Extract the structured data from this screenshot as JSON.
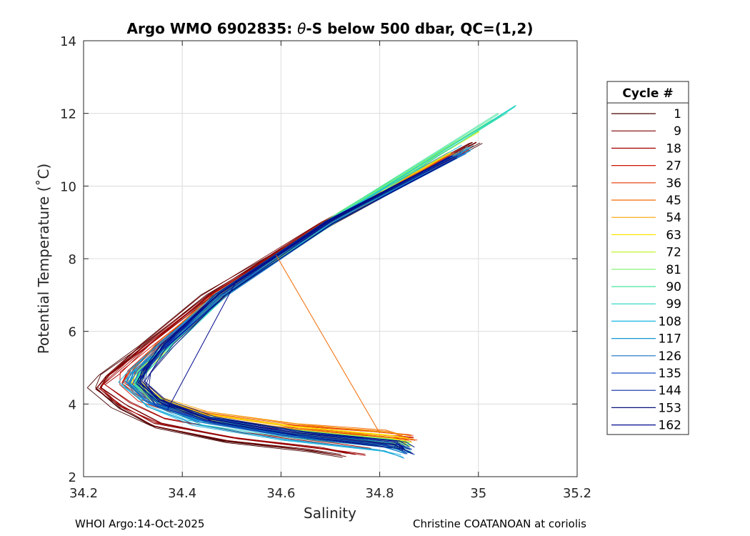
{
  "chart_data": {
    "type": "line",
    "title_parts": {
      "pre": "Argo WMO 6902835: ",
      "symbol": "θ",
      "post": "-S below 500 dbar,  QC=(1,2)"
    },
    "xlabel": "Salinity",
    "ylabel": "Potential Temperature (˚C)",
    "xlim": [
      34.2,
      35.2
    ],
    "ylim": [
      2,
      14
    ],
    "xticks": [
      34.2,
      34.4,
      34.6,
      34.8,
      35,
      35.2
    ],
    "xtick_labels": [
      "34.2",
      "34.4",
      "34.6",
      "34.8",
      "35",
      "35.2"
    ],
    "yticks": [
      2,
      4,
      6,
      8,
      10,
      12,
      14
    ],
    "ytick_labels": [
      "2",
      "4",
      "6",
      "8",
      "10",
      "12",
      "14"
    ],
    "grid": true,
    "legend": {
      "title": "Cycle #",
      "placement": "outside-right",
      "entries": [
        "1",
        "9",
        "18",
        "27",
        "36",
        "45",
        "54",
        "63",
        "72",
        "81",
        "90",
        "99",
        "108",
        "117",
        "126",
        "135",
        "144",
        "153",
        "162"
      ],
      "colors": [
        "#4a0000",
        "#7a0000",
        "#a30000",
        "#cc1100",
        "#e83500",
        "#f26a00",
        "#f7a300",
        "#ffe400",
        "#c5f52c",
        "#7ff06a",
        "#45e49e",
        "#22d3c4",
        "#18b6e0",
        "#1296d3",
        "#1670c4",
        "#1a4bc0",
        "#0d2aa0",
        "#06127a",
        "#000a8c"
      ]
    },
    "series": [
      {
        "name": "1",
        "x": [
          35.0,
          34.7,
          34.45,
          34.32,
          34.24,
          34.22,
          34.27,
          34.34,
          34.48,
          34.65,
          34.72
        ],
        "y": [
          11.2,
          9.0,
          7.0,
          5.6,
          4.8,
          4.45,
          3.9,
          3.4,
          3.0,
          2.75,
          2.6
        ]
      },
      {
        "name": "9",
        "x": [
          34.99,
          34.69,
          34.45,
          34.32,
          34.25,
          34.23,
          34.28,
          34.35,
          34.5,
          34.67,
          34.74
        ],
        "y": [
          11.2,
          9.0,
          7.0,
          5.6,
          4.8,
          4.45,
          3.95,
          3.45,
          3.05,
          2.78,
          2.62
        ]
      },
      {
        "name": "18",
        "x": [
          34.98,
          34.69,
          34.46,
          34.33,
          34.26,
          34.24,
          34.29,
          34.36,
          34.52,
          34.7,
          34.78
        ],
        "y": [
          11.1,
          9.0,
          7.0,
          5.6,
          4.8,
          4.5,
          4.0,
          3.55,
          3.15,
          2.85,
          2.7
        ]
      },
      {
        "name": "27",
        "x": [
          34.97,
          34.7,
          34.47,
          34.34,
          34.28,
          34.27,
          34.31,
          34.4,
          34.58,
          34.78,
          34.86
        ],
        "y": [
          11.0,
          9.0,
          7.0,
          5.6,
          4.9,
          4.55,
          4.1,
          3.7,
          3.35,
          3.15,
          3.05
        ]
      },
      {
        "name": "36",
        "x": [
          34.96,
          34.7,
          34.47,
          34.35,
          34.3,
          34.29,
          34.33,
          34.42,
          34.6,
          34.8,
          34.87
        ],
        "y": [
          10.9,
          9.0,
          7.0,
          5.6,
          4.9,
          4.6,
          4.15,
          3.75,
          3.4,
          3.2,
          3.1
        ]
      },
      {
        "name": "45",
        "x": [
          34.95,
          34.7,
          34.48,
          34.36,
          34.31,
          34.3,
          34.34,
          34.44,
          34.62,
          34.82,
          34.86
        ],
        "y": [
          10.9,
          9.0,
          7.0,
          5.6,
          4.9,
          4.6,
          4.15,
          3.75,
          3.4,
          3.2,
          3.05
        ]
      },
      {
        "name": "54",
        "x": [
          34.95,
          34.7,
          34.48,
          34.37,
          34.32,
          34.31,
          34.35,
          34.45,
          34.63,
          34.82,
          34.86
        ],
        "y": [
          10.9,
          9.0,
          7.0,
          5.6,
          4.9,
          4.6,
          4.1,
          3.7,
          3.35,
          3.1,
          3.0
        ]
      },
      {
        "name": "63",
        "x": [
          34.95,
          34.7,
          34.48,
          34.37,
          34.32,
          34.31,
          34.36,
          34.45,
          34.63,
          34.82,
          34.86
        ],
        "y": [
          10.9,
          9.0,
          7.0,
          5.6,
          4.9,
          4.6,
          4.1,
          3.65,
          3.3,
          3.05,
          2.95
        ]
      },
      {
        "name": "72",
        "x": [
          35.0,
          34.72,
          34.49,
          34.37,
          34.32,
          34.31,
          34.36,
          34.45,
          34.63,
          34.82,
          34.86
        ],
        "y": [
          11.5,
          9.2,
          7.1,
          5.6,
          4.9,
          4.55,
          4.05,
          3.6,
          3.25,
          3.0,
          2.9
        ]
      },
      {
        "name": "81",
        "x": [
          35.03,
          34.73,
          34.49,
          34.37,
          34.32,
          34.31,
          34.36,
          34.45,
          34.63,
          34.82,
          34.86
        ],
        "y": [
          11.8,
          9.3,
          7.1,
          5.6,
          4.9,
          4.55,
          4.05,
          3.6,
          3.2,
          2.95,
          2.85
        ]
      },
      {
        "name": "90",
        "x": [
          35.05,
          34.73,
          34.49,
          34.37,
          34.32,
          34.31,
          34.36,
          34.45,
          34.63,
          34.82,
          34.86
        ],
        "y": [
          12.0,
          9.3,
          7.1,
          5.6,
          4.9,
          4.55,
          4.0,
          3.55,
          3.2,
          2.95,
          2.8
        ]
      },
      {
        "name": "99",
        "x": [
          35.07,
          34.74,
          34.49,
          34.37,
          34.31,
          34.3,
          34.35,
          34.44,
          34.62,
          34.81,
          34.85
        ],
        "y": [
          12.2,
          9.4,
          7.1,
          5.6,
          4.9,
          4.55,
          4.0,
          3.5,
          3.15,
          2.9,
          2.75
        ]
      },
      {
        "name": "108",
        "x": [
          34.98,
          34.7,
          34.48,
          34.36,
          34.3,
          34.28,
          34.33,
          34.42,
          34.6,
          34.8,
          34.84
        ],
        "y": [
          11.1,
          9.0,
          7.0,
          5.6,
          4.9,
          4.55,
          4.0,
          3.5,
          3.1,
          2.8,
          2.65
        ]
      },
      {
        "name": "117",
        "x": [
          34.98,
          34.7,
          34.48,
          34.36,
          34.3,
          34.29,
          34.33,
          34.43,
          34.61,
          34.81,
          34.85
        ],
        "y": [
          11.0,
          9.0,
          7.0,
          5.6,
          4.9,
          4.55,
          4.0,
          3.5,
          3.1,
          2.8,
          2.6
        ]
      },
      {
        "name": "126",
        "x": [
          34.97,
          34.7,
          34.48,
          34.36,
          34.31,
          34.3,
          34.34,
          34.44,
          34.62,
          34.82,
          34.86
        ],
        "y": [
          10.9,
          9.0,
          7.0,
          5.6,
          4.9,
          4.55,
          4.0,
          3.5,
          3.1,
          2.8,
          2.62
        ]
      },
      {
        "name": "135",
        "x": [
          34.96,
          34.7,
          34.48,
          34.37,
          34.32,
          34.31,
          34.35,
          34.45,
          34.63,
          34.83,
          34.86
        ],
        "y": [
          10.9,
          9.0,
          7.0,
          5.6,
          4.9,
          4.55,
          4.0,
          3.55,
          3.15,
          2.85,
          2.65
        ]
      },
      {
        "name": "144",
        "x": [
          34.95,
          34.7,
          34.48,
          34.37,
          34.33,
          34.32,
          34.36,
          34.46,
          34.64,
          34.84,
          34.86
        ],
        "y": [
          10.8,
          9.0,
          7.0,
          5.6,
          4.9,
          4.55,
          4.0,
          3.55,
          3.15,
          2.85,
          2.7
        ]
      },
      {
        "name": "153",
        "x": [
          34.95,
          34.7,
          34.48,
          34.37,
          34.33,
          34.32,
          34.36,
          34.46,
          34.64,
          34.84,
          34.86
        ],
        "y": [
          10.8,
          9.0,
          7.0,
          5.6,
          4.9,
          4.55,
          4.05,
          3.55,
          3.15,
          2.85,
          2.7
        ]
      },
      {
        "name": "162",
        "x": [
          34.95,
          34.7,
          34.48,
          34.37,
          34.33,
          34.32,
          34.36,
          34.46,
          34.64,
          34.84,
          34.86
        ],
        "y": [
          10.8,
          9.0,
          7.0,
          5.6,
          4.9,
          4.55,
          4.05,
          3.55,
          3.15,
          2.88,
          2.7
        ]
      }
    ],
    "annotations": [
      {
        "name": "spike-orange",
        "color": "#f26a00",
        "x": [
          34.59,
          34.8
        ],
        "y": [
          8.1,
          3.2
        ]
      },
      {
        "name": "spike-navy",
        "color": "#000a8c",
        "x": [
          34.51,
          34.37
        ],
        "y": [
          7.4,
          3.85
        ]
      }
    ]
  },
  "footer": {
    "left": "WHOI Argo:14-Oct-2025",
    "right": "Christine COATANOAN at coriolis"
  }
}
